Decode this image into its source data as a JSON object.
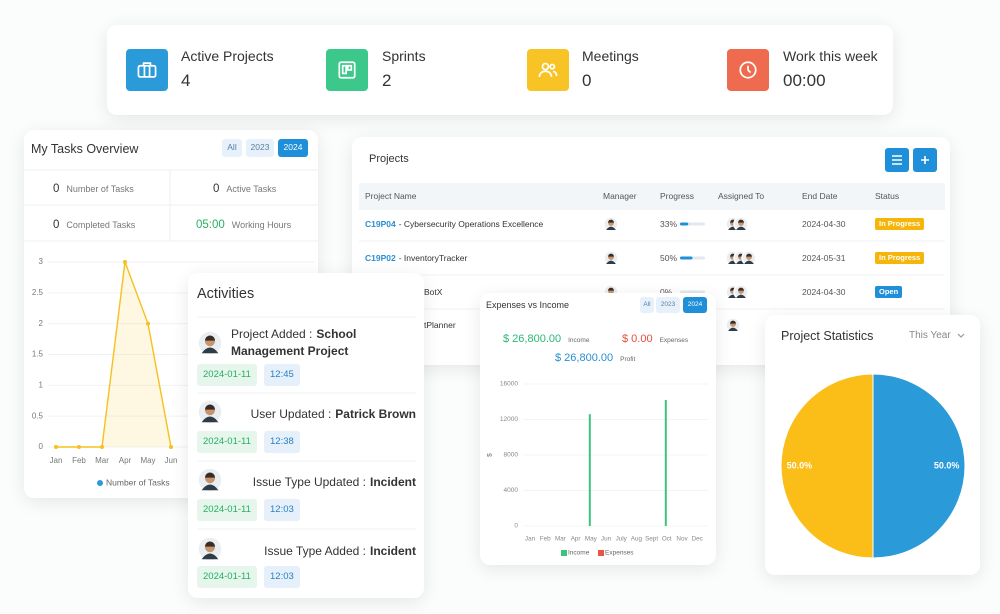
{
  "stats": [
    {
      "label": "Active Projects",
      "value": 4
    },
    {
      "label": "Sprints",
      "value": 2
    },
    {
      "label": "Meetings",
      "value": 0
    },
    {
      "label": "Work this week",
      "value": "00:00"
    }
  ],
  "tasks_overview": {
    "title": "My Tasks Overview",
    "filters": [
      "All",
      "2023",
      "2024"
    ],
    "metrics": [
      {
        "value": 0,
        "label": "Number of Tasks"
      },
      {
        "value": 0,
        "label": "Active Tasks"
      },
      {
        "value": 0,
        "label": "Completed Tasks"
      },
      {
        "value": "05:00",
        "label": "Working Hours"
      }
    ]
  },
  "projects": {
    "title": "Projects",
    "columns": [
      "Project Name",
      "Manager",
      "Progress",
      "Assigned To",
      "End Date",
      "Status"
    ],
    "rows": [
      {
        "code": "C19P04",
        "name": "- Cybersecurity Operations Excellence",
        "progress": {
          "value": 33,
          "label": "33%"
        },
        "end_date": "2024-04-30",
        "status": "In Progress",
        "status_color": "#f5b50a"
      },
      {
        "code": "C19P02",
        "name": "- InventoryTracker",
        "progress": {
          "value": 50,
          "label": "50%"
        },
        "end_date": "2024-05-31",
        "status": "In Progress",
        "status_color": "#f5b50a"
      },
      {
        "name": "BotX",
        "progress": {
          "value": 0,
          "label": "0%"
        },
        "end_date": "2024-04-30",
        "status": "Open",
        "status_color": "#1e8fd8"
      },
      {
        "name": "tPlanner"
      }
    ]
  },
  "activities": {
    "title": "Activities",
    "items": [
      {
        "action": "Project Added :",
        "subject": "School Management Project",
        "date": "2024-01-11",
        "time": "12:45"
      },
      {
        "action": "User Updated :",
        "subject": "Patrick Brown",
        "date": "2024-01-11",
        "time": "12:38"
      },
      {
        "action": "Issue Type Updated :",
        "subject": "Incident",
        "date": "2024-01-11",
        "time": "12:03"
      },
      {
        "action": "Issue Type Added :",
        "subject": "Incident",
        "date": "2024-01-11",
        "time": "12:03"
      }
    ]
  },
  "chart_data": [
    {
      "type": "line",
      "categories": [
        "Jan",
        "Feb",
        "Mar",
        "Apr",
        "May",
        "Jun"
      ],
      "series": [
        {
          "name": "Number of Tasks",
          "color": "#f6c01e",
          "values": [
            0,
            0,
            0,
            3,
            2,
            0
          ]
        }
      ],
      "legend_marker_color": "#2a9bd8",
      "ylim": [
        0,
        3
      ],
      "yticks": [
        0,
        0.5,
        1,
        1.5,
        2,
        2.5,
        3
      ],
      "grid": true
    },
    {
      "type": "bar",
      "title": "Expenses vs Income",
      "filters": [
        "All",
        "2023",
        "2024"
      ],
      "summary": [
        {
          "value": "$ 26,800.00",
          "label": "Income",
          "color": "#2bb673"
        },
        {
          "value": "$ 0.00",
          "label": "Expenses",
          "color": "#e74c3c"
        },
        {
          "value": "$ 26,800.00",
          "label": "Profit",
          "color": "#2a8fd0"
        }
      ],
      "categories": [
        "Jan",
        "Feb",
        "Mar",
        "Apr",
        "May",
        "Jun",
        "July",
        "Aug",
        "Sept",
        "Oct",
        "Nov",
        "Dec"
      ],
      "ylabel": "$",
      "series": [
        {
          "name": "Income",
          "color": "#3cc47c",
          "values": [
            0,
            0,
            0,
            0,
            12600,
            0,
            0,
            0,
            0,
            14200,
            0,
            0
          ]
        },
        {
          "name": "Expenses",
          "color": "#e4574a",
          "values": [
            0,
            0,
            0,
            0,
            0,
            0,
            0,
            0,
            0,
            0,
            0,
            0
          ]
        }
      ],
      "ylim": [
        0,
        16000
      ],
      "yticks": [
        0,
        4000,
        8000,
        12000,
        16000
      ]
    },
    {
      "type": "pie",
      "title": "Project Statistics",
      "filter": "This Year",
      "values": [
        50,
        50
      ],
      "value_labels": [
        "50.0%",
        "50.0%"
      ],
      "colors": [
        "#2b9ad9",
        "#fbbd18"
      ]
    }
  ]
}
